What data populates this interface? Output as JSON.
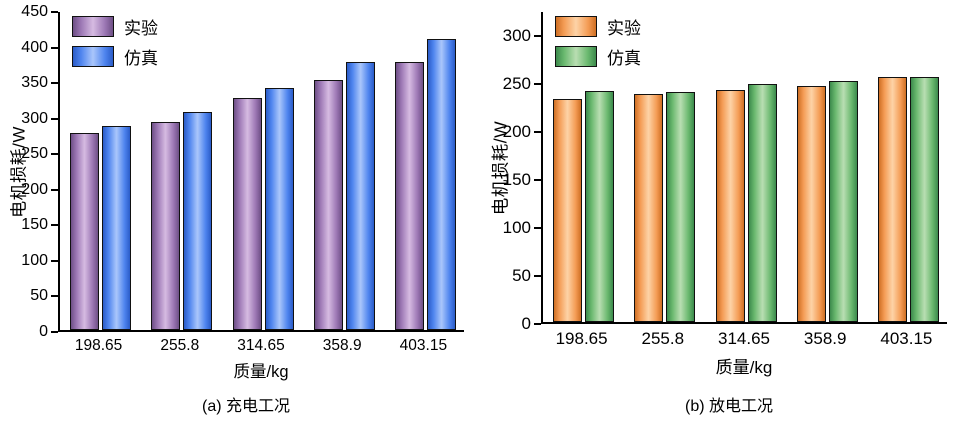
{
  "chart_data": [
    {
      "type": "bar",
      "caption": "(a) 充电工况",
      "ylabel": "电机损耗/W",
      "xlabel": "质量/kg",
      "ylim": [
        0,
        450
      ],
      "yticks": [
        0,
        50,
        100,
        150,
        200,
        250,
        300,
        350,
        400,
        450
      ],
      "categories": [
        "198.65",
        "255.8",
        "314.65",
        "358.9",
        "403.15"
      ],
      "grid": false,
      "legend_position": "upper-left-inside",
      "series": [
        {
          "name": "实验",
          "colors": {
            "edge": "#6e4f86",
            "base": "#9c77b4",
            "mid": "#d6bbe2"
          },
          "values": [
            277,
            293,
            326,
            351,
            377
          ]
        },
        {
          "name": "仿真",
          "colors": {
            "edge": "#2b5cc8",
            "base": "#4e84ee",
            "mid": "#aac6fb"
          },
          "values": [
            287,
            306,
            340,
            377,
            409
          ]
        }
      ]
    },
    {
      "type": "bar",
      "caption": "(b) 放电工况",
      "ylabel": "电机损耗/W",
      "xlabel": "质量/kg",
      "ylim": [
        0,
        325
      ],
      "yticks": [
        0,
        50,
        100,
        150,
        200,
        250,
        300
      ],
      "categories": [
        "198.65",
        "255.8",
        "314.65",
        "358.9",
        "403.15"
      ],
      "grid": false,
      "legend_position": "upper-left-inside",
      "series": [
        {
          "name": "实验",
          "colors": {
            "edge": "#cf6f24",
            "base": "#f49c55",
            "mid": "#fdd3a7"
          },
          "values": [
            232,
            238,
            242,
            246,
            255
          ]
        },
        {
          "name": "仿真",
          "colors": {
            "edge": "#3c8a4c",
            "base": "#69b86e",
            "mid": "#b9deb2"
          },
          "values": [
            241,
            240,
            248,
            251,
            255
          ]
        }
      ]
    }
  ]
}
